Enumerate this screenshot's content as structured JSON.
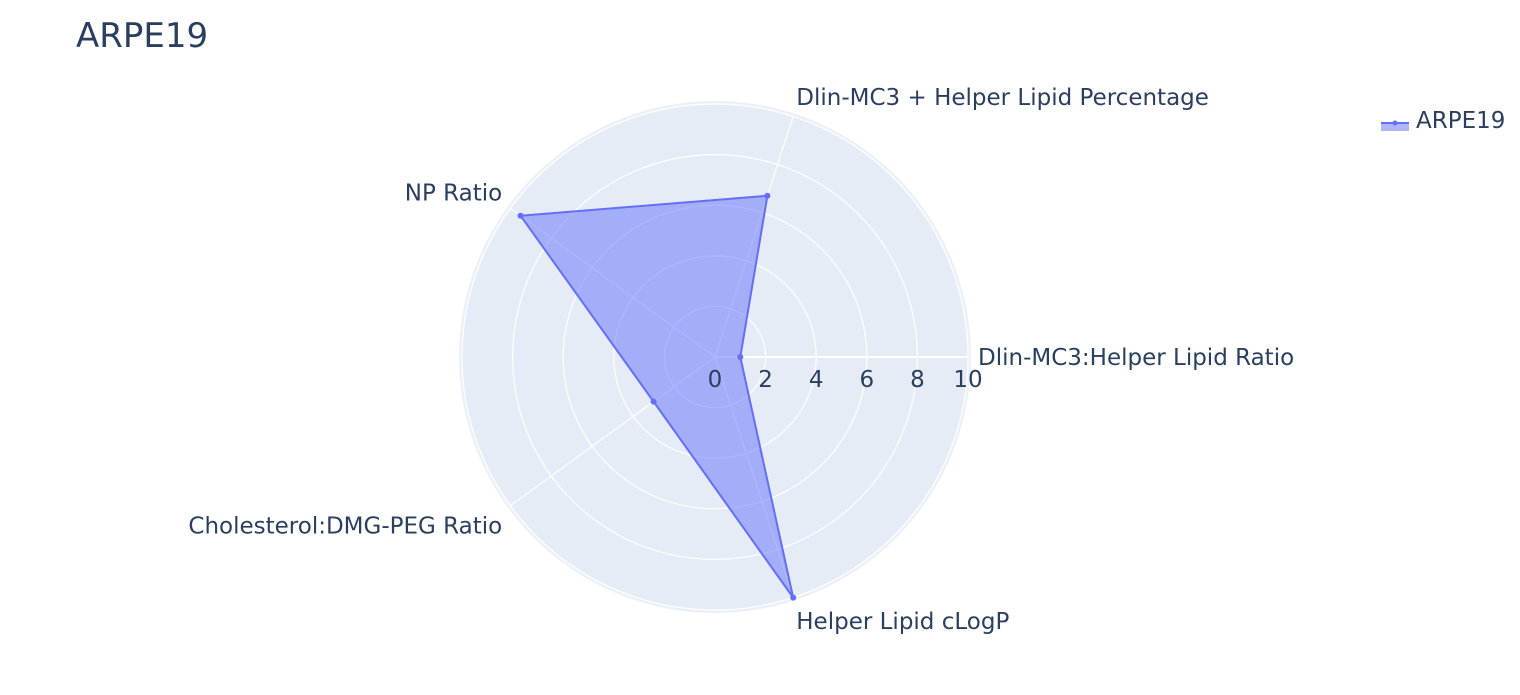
{
  "chart_data": {
    "type": "radar",
    "title": "ARPE19",
    "categories": [
      "Dlin-MC3:Helper Lipid Ratio",
      "Dlin-MC3 + Helper Lipid Percentage",
      "NP Ratio",
      "Cholesterol:DMG-PEG Ratio",
      "Helper Lipid cLogP"
    ],
    "series": [
      {
        "name": "ARPE19",
        "values": [
          1.0,
          6.7,
          9.5,
          3.0,
          10.0
        ]
      }
    ],
    "radial_range": [
      0,
      10
    ],
    "radial_ticks": [
      "0",
      "2",
      "4",
      "6",
      "8",
      "10"
    ],
    "legend_position": "top-right",
    "colors": {
      "line": "#636efa",
      "fill": "rgba(99,110,250,0.5)",
      "polar_bg": "#e5ecf6",
      "grid": "#ffffff",
      "text": "#2a3f5f"
    }
  }
}
